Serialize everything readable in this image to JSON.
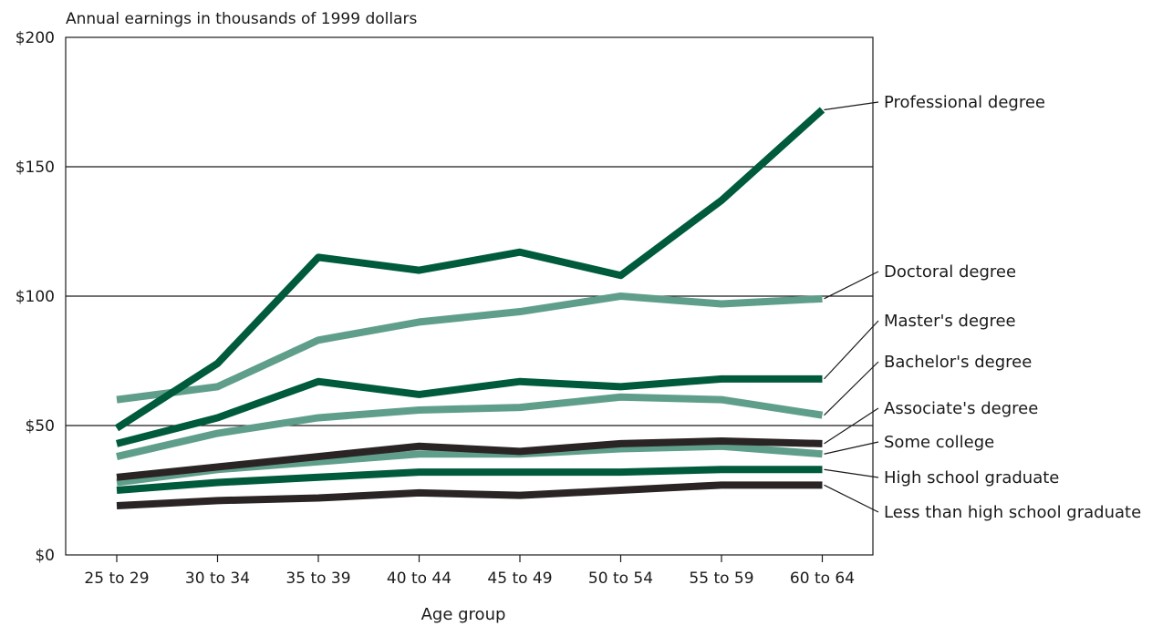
{
  "chart_data": {
    "type": "line",
    "title": "",
    "ylabel": "Annual earnings in thousands of 1999 dollars",
    "xlabel": "Age group",
    "ylim": [
      0,
      200
    ],
    "yticks": [
      0,
      50,
      100,
      150,
      200
    ],
    "ytick_labels": [
      "$0",
      "$50",
      "$100",
      "$150",
      "$200"
    ],
    "grid": "horizontal at $50, $100, $150",
    "categories": [
      "25 to 29",
      "30 to 34",
      "35 to 39",
      "40 to 44",
      "45 to 49",
      "50 to 54",
      "55 to 59",
      "60 to 64"
    ],
    "series": [
      {
        "name": "Professional degree",
        "color": "#005a3c",
        "values": [
          49,
          74,
          115,
          110,
          117,
          108,
          137,
          172
        ]
      },
      {
        "name": "Doctoral degree",
        "color": "#5f9e8a",
        "values": [
          60,
          65,
          83,
          90,
          94,
          100,
          97,
          99
        ]
      },
      {
        "name": "Master's degree",
        "color": "#005a3c",
        "values": [
          43,
          53,
          67,
          62,
          67,
          65,
          68,
          68
        ]
      },
      {
        "name": "Bachelor's degree",
        "color": "#5f9e8a",
        "values": [
          38,
          47,
          53,
          56,
          57,
          61,
          60,
          54
        ]
      },
      {
        "name": "Associate's degree",
        "color": "#2a2424",
        "values": [
          30,
          34,
          38,
          42,
          40,
          43,
          44,
          43
        ]
      },
      {
        "name": "Some college",
        "color": "#5f9e8a",
        "values": [
          28,
          33,
          36,
          39,
          39,
          41,
          42,
          39
        ]
      },
      {
        "name": "High school graduate",
        "color": "#005a3c",
        "values": [
          25,
          28,
          30,
          32,
          32,
          32,
          33,
          33
        ]
      },
      {
        "name": "Less than high school graduate",
        "color": "#2a2424",
        "values": [
          19,
          21,
          22,
          24,
          23,
          25,
          27,
          27
        ]
      }
    ]
  }
}
